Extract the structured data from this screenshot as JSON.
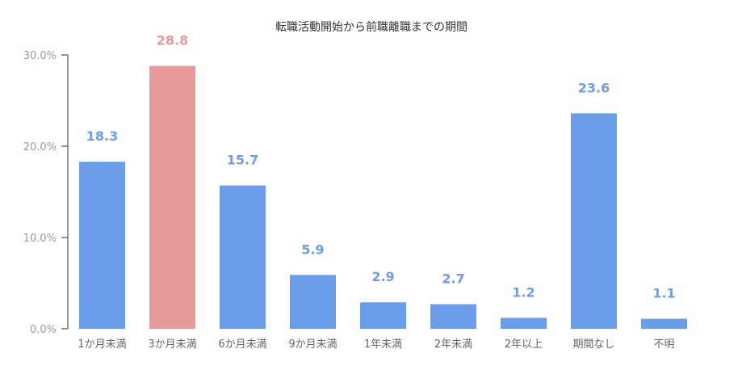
{
  "chart_data": {
    "type": "bar",
    "title": "転職活動開始から前職離職までの期間",
    "xlabel": "",
    "ylabel": "",
    "ylim": [
      0,
      30
    ],
    "yticks": [
      "0.0%",
      "10.0%",
      "20.0%",
      "30.0%"
    ],
    "ytick_values": [
      0,
      10,
      20,
      30
    ],
    "categories": [
      "1か月未満",
      "3か月未満",
      "6か月未満",
      "9か月未満",
      "1年未満",
      "2年未満",
      "2年以上",
      "期間なし",
      "不明"
    ],
    "values": [
      18.3,
      28.8,
      15.7,
      5.9,
      2.9,
      2.7,
      1.2,
      23.6,
      1.1
    ],
    "value_labels": [
      "18.3",
      "28.8",
      "15.7",
      "5.9",
      "2.9",
      "2.7",
      "1.2",
      "23.6",
      "1.1"
    ],
    "highlight_index": 1,
    "colors": {
      "bar": "#6b9eea",
      "highlight": "#e89a9a",
      "axis": "#333333"
    },
    "grid": false,
    "legend": "none"
  }
}
